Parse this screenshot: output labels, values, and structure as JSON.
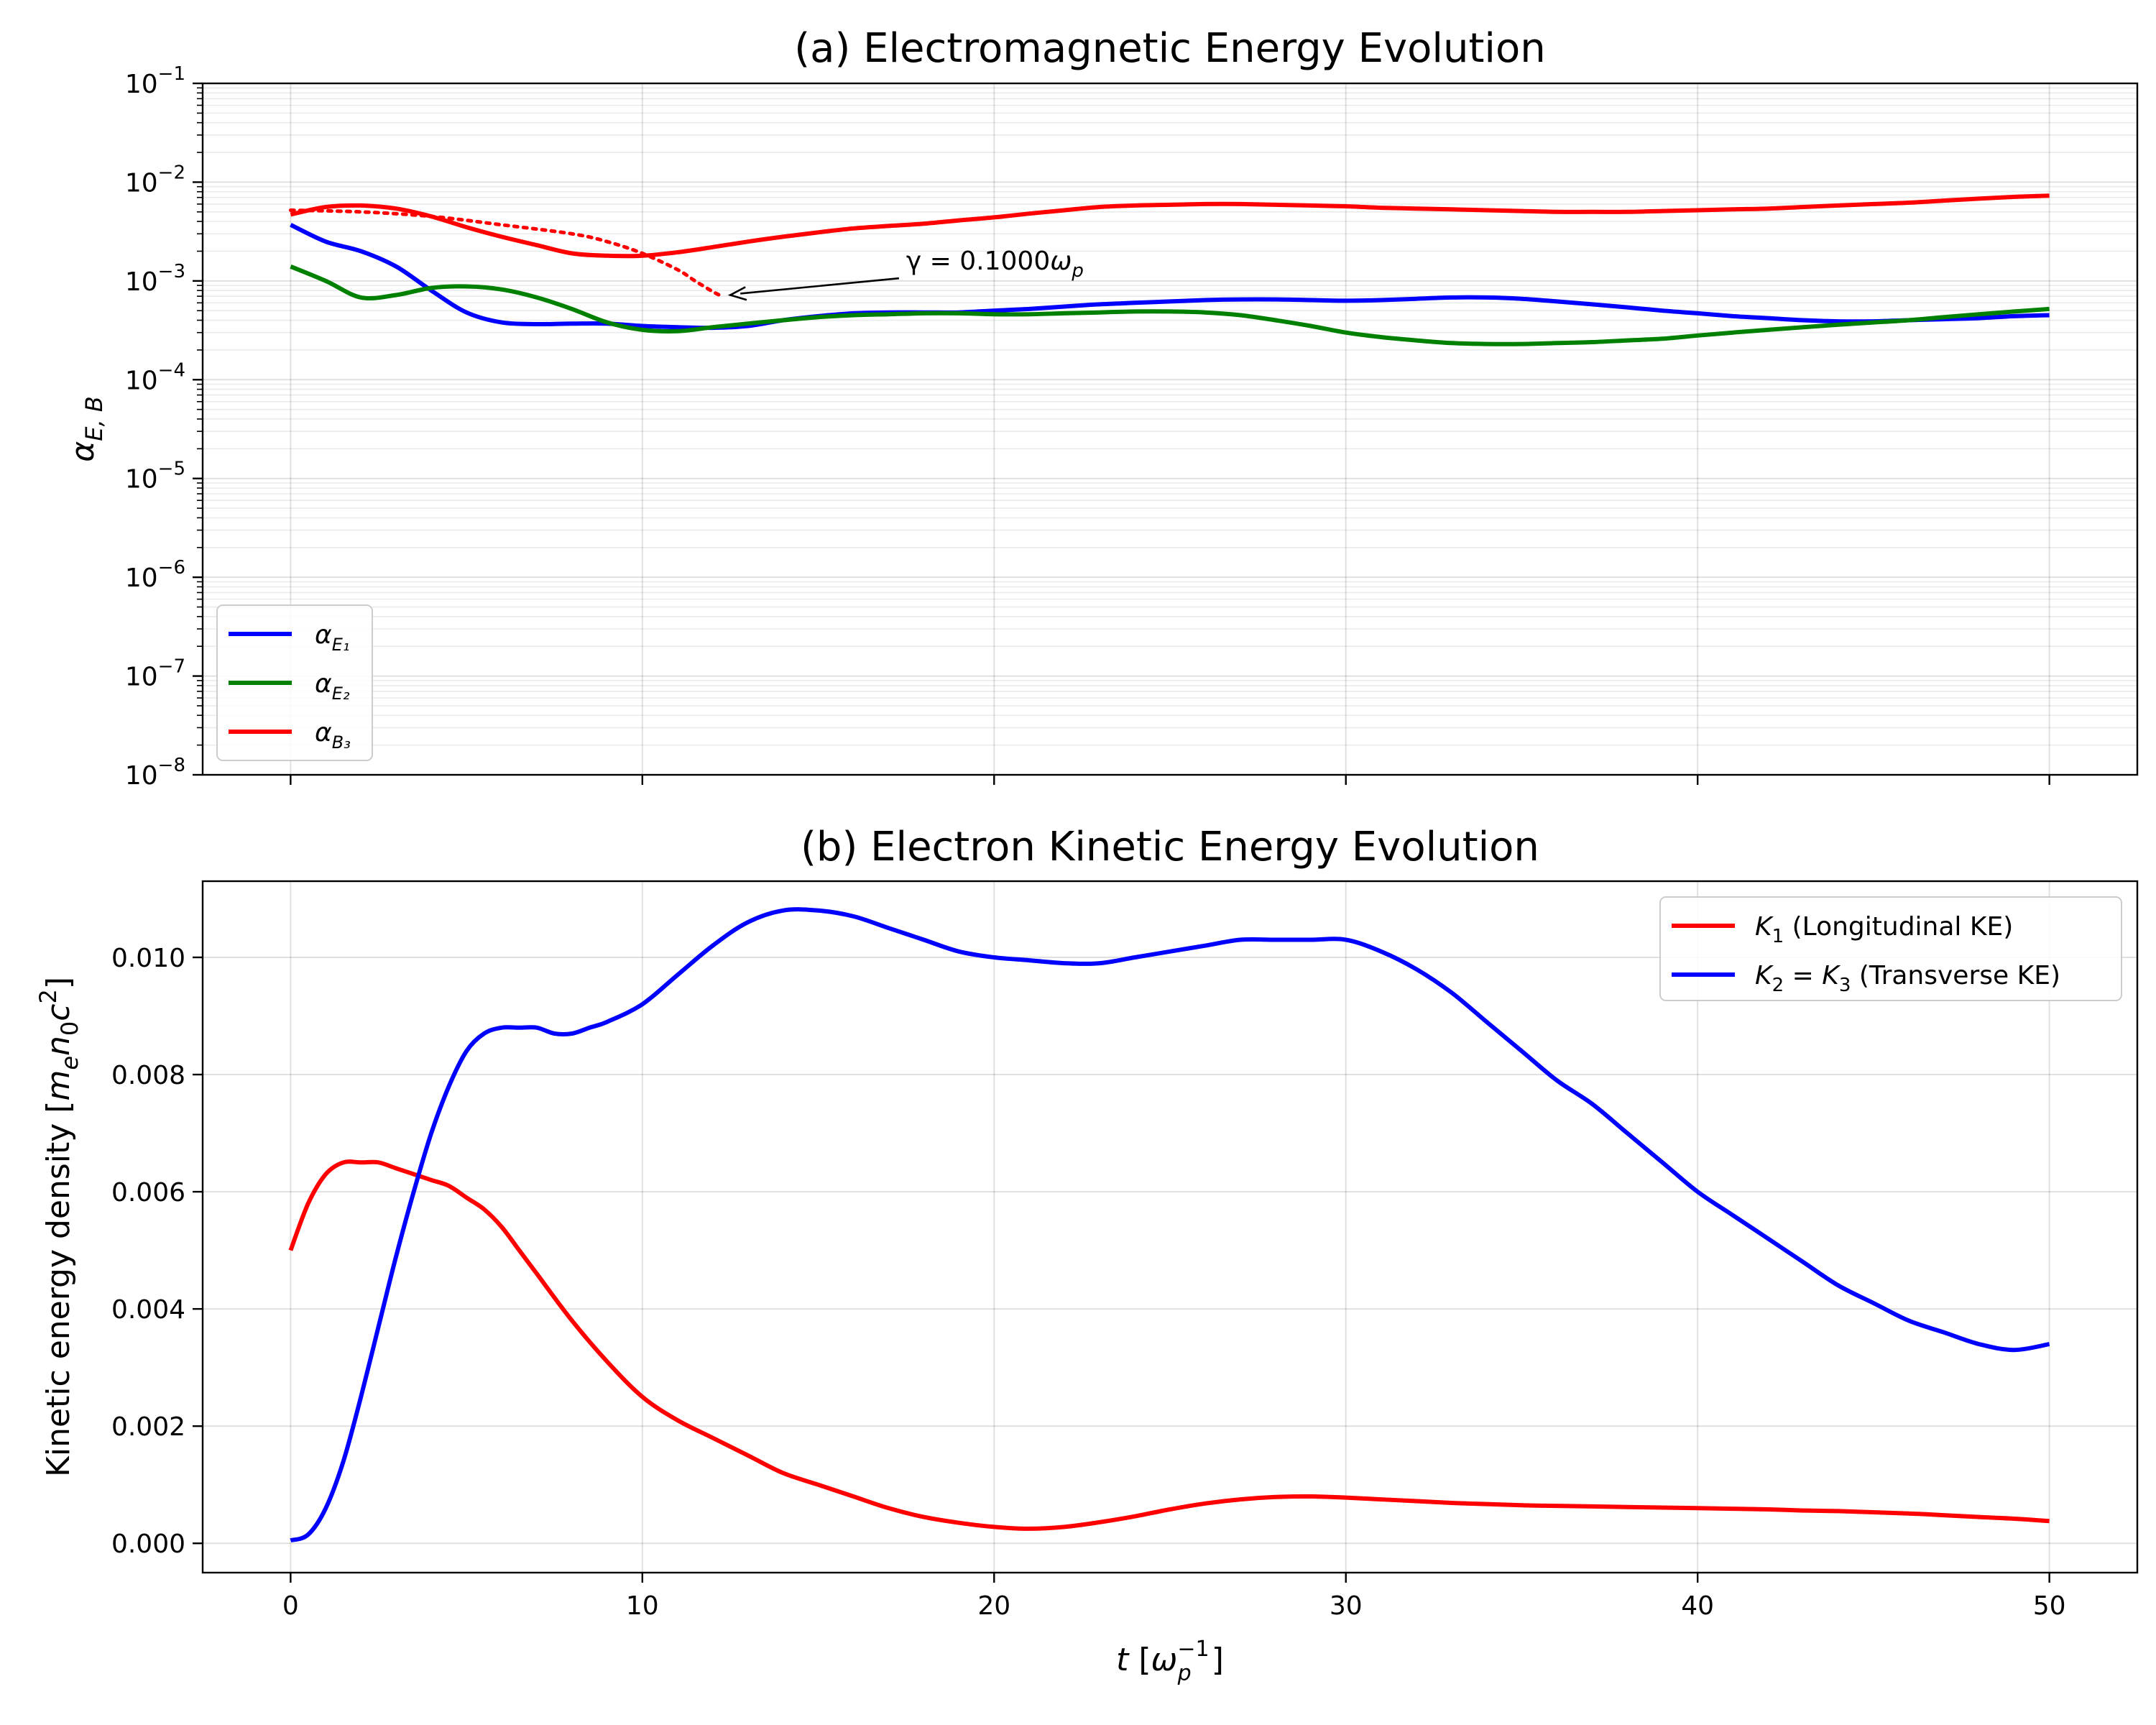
{
  "chart_data": [
    {
      "type": "line",
      "title": "(a) Electromagnetic Energy Evolution",
      "xlabel": "",
      "ylabel": "α",
      "ylabel_sub": "E, B",
      "yscale": "log",
      "ylim": [
        1e-08,
        0.1
      ],
      "xlim": [
        -2.5,
        52.5
      ],
      "xticks": [
        0,
        10,
        20,
        30,
        40,
        50
      ],
      "xtick_labels_visible": false,
      "yticks": [
        {
          "value": 1e-08,
          "base": "10",
          "exp": "−8"
        },
        {
          "value": 1e-07,
          "base": "10",
          "exp": "−7"
        },
        {
          "value": 1e-06,
          "base": "10",
          "exp": "−6"
        },
        {
          "value": 1e-05,
          "base": "10",
          "exp": "−5"
        },
        {
          "value": 0.0001,
          "base": "10",
          "exp": "−4"
        },
        {
          "value": 0.001,
          "base": "10",
          "exp": "−3"
        },
        {
          "value": 0.01,
          "base": "10",
          "exp": "−2"
        },
        {
          "value": 0.1,
          "base": "10",
          "exp": "−1"
        }
      ],
      "grid": true,
      "legend_position": "lower-left",
      "series": [
        {
          "name": "α",
          "sub": "E₁",
          "color": "#0000ff",
          "x": [
            0,
            1,
            2,
            3,
            4,
            5,
            6,
            7,
            8,
            9,
            10,
            11,
            12,
            13,
            14,
            15,
            16,
            17,
            18,
            19,
            20,
            21,
            22,
            23,
            24,
            25,
            26,
            27,
            28,
            29,
            30,
            31,
            32,
            33,
            34,
            35,
            36,
            37,
            38,
            39,
            40,
            41,
            42,
            43,
            44,
            45,
            46,
            47,
            48,
            49,
            50
          ],
          "y": [
            0.0037,
            0.0025,
            0.002,
            0.0014,
            0.0008,
            0.00048,
            0.00038,
            0.000365,
            0.00037,
            0.00037,
            0.00035,
            0.00034,
            0.000335,
            0.00035,
            0.0004,
            0.00044,
            0.00047,
            0.00048,
            0.00048,
            0.00048,
            0.0005,
            0.00052,
            0.00055,
            0.00058,
            0.0006,
            0.00062,
            0.00064,
            0.00065,
            0.00065,
            0.00064,
            0.00063,
            0.00064,
            0.00066,
            0.00068,
            0.00068,
            0.00066,
            0.00062,
            0.00058,
            0.00054,
            0.0005,
            0.00047,
            0.00044,
            0.00042,
            0.0004,
            0.00039,
            0.00039,
            0.0004,
            0.00041,
            0.00042,
            0.00044,
            0.00045
          ]
        },
        {
          "name": "α",
          "sub": "E₂",
          "color": "#008000",
          "x": [
            0,
            1,
            2,
            3,
            4,
            5,
            6,
            7,
            8,
            9,
            10,
            11,
            12,
            13,
            14,
            15,
            16,
            17,
            18,
            19,
            20,
            21,
            22,
            23,
            24,
            25,
            26,
            27,
            28,
            29,
            30,
            31,
            32,
            33,
            34,
            35,
            36,
            37,
            38,
            39,
            40,
            41,
            42,
            43,
            44,
            45,
            46,
            47,
            48,
            49,
            50
          ],
          "y": [
            0.0014,
            0.001,
            0.00068,
            0.00072,
            0.00085,
            0.00088,
            0.00082,
            0.00068,
            0.00052,
            0.00038,
            0.00032,
            0.00031,
            0.00034,
            0.00037,
            0.0004,
            0.00043,
            0.00045,
            0.00046,
            0.00047,
            0.00047,
            0.00046,
            0.00046,
            0.00047,
            0.00048,
            0.00049,
            0.00049,
            0.00048,
            0.00045,
            0.0004,
            0.00035,
            0.0003,
            0.00027,
            0.00025,
            0.000235,
            0.00023,
            0.00023,
            0.000235,
            0.00024,
            0.00025,
            0.00026,
            0.00028,
            0.0003,
            0.00032,
            0.00034,
            0.00036,
            0.00038,
            0.0004,
            0.00043,
            0.00046,
            0.00049,
            0.00052
          ]
        },
        {
          "name": "α",
          "sub": "B₃",
          "color": "#ff0000",
          "x": [
            0,
            1,
            2,
            3,
            4,
            5,
            6,
            7,
            8,
            9,
            10,
            11,
            12,
            13,
            14,
            15,
            16,
            17,
            18,
            19,
            20,
            21,
            22,
            23,
            24,
            25,
            26,
            27,
            28,
            29,
            30,
            31,
            32,
            33,
            34,
            35,
            36,
            37,
            38,
            39,
            40,
            41,
            42,
            43,
            44,
            45,
            46,
            47,
            48,
            49,
            50
          ],
          "y": [
            0.0047,
            0.0056,
            0.0058,
            0.0054,
            0.0045,
            0.0035,
            0.0028,
            0.0023,
            0.0019,
            0.0018,
            0.0018,
            0.00195,
            0.0022,
            0.0025,
            0.0028,
            0.0031,
            0.0034,
            0.0036,
            0.0038,
            0.0041,
            0.0044,
            0.0048,
            0.0052,
            0.0056,
            0.0058,
            0.0059,
            0.006,
            0.006,
            0.0059,
            0.0058,
            0.0057,
            0.0055,
            0.0054,
            0.0053,
            0.0052,
            0.0051,
            0.005,
            0.005,
            0.005,
            0.0051,
            0.0052,
            0.0053,
            0.0054,
            0.0056,
            0.0058,
            0.006,
            0.0062,
            0.0065,
            0.0068,
            0.0071,
            0.0073
          ]
        }
      ],
      "fit_line": {
        "color": "#ff0000",
        "style": "dotted",
        "x": [
          0,
          2,
          4,
          6,
          8,
          9,
          10,
          11,
          11.5,
          12,
          12.3
        ],
        "y": [
          0.0052,
          0.005,
          0.0045,
          0.0037,
          0.003,
          0.0025,
          0.0019,
          0.0013,
          0.001,
          0.00078,
          0.00069
        ]
      },
      "annotation": {
        "text_prefix": "γ = 0.1000",
        "text_symbol": "ω",
        "text_sub": "p",
        "text_data": [
          17.5,
          0.0013
        ],
        "arrow_head": [
          12.5,
          0.00072
        ]
      }
    },
    {
      "type": "line",
      "title": "(b) Electron Kinetic Energy Evolution",
      "xlabel_var": "t",
      "xlabel_unit_sym": "ω",
      "xlabel_unit_sub": "p",
      "xlabel_unit_sup": "−1",
      "ylabel": "Kinetic energy density [m",
      "ylabel_parts": {
        "e": "e",
        "n": "n",
        "zero": "0",
        "c": "c",
        "two": "2"
      },
      "xlim": [
        -2.5,
        52.5
      ],
      "ylim": [
        -0.0005,
        0.0113
      ],
      "xticks": [
        0,
        10,
        20,
        30,
        40,
        50
      ],
      "xtick_labels": [
        "0",
        "10",
        "20",
        "30",
        "40",
        "50"
      ],
      "yticks": [
        0,
        0.002,
        0.004,
        0.006,
        0.008,
        0.01
      ],
      "ytick_labels": [
        "0.000",
        "0.002",
        "0.004",
        "0.006",
        "0.008",
        "0.010"
      ],
      "grid": true,
      "legend_position": "upper-right",
      "series": [
        {
          "name_var": "K",
          "name_sub": "1",
          "name_rest": " (Longitudinal KE)",
          "color": "#ff0000",
          "x": [
            0,
            0.5,
            1,
            1.5,
            2,
            2.5,
            3,
            3.5,
            4,
            4.5,
            5,
            5.5,
            6,
            6.5,
            7,
            8,
            9,
            10,
            11,
            12,
            13,
            14,
            15,
            16,
            17,
            18,
            19,
            20,
            21,
            22,
            23,
            24,
            25,
            26,
            27,
            28,
            29,
            30,
            31,
            32,
            33,
            34,
            35,
            36,
            37,
            38,
            39,
            40,
            41,
            42,
            43,
            44,
            45,
            46,
            47,
            48,
            49,
            50
          ],
          "y": [
            0.005,
            0.0058,
            0.0063,
            0.0065,
            0.0065,
            0.0065,
            0.0064,
            0.0063,
            0.0062,
            0.0061,
            0.0059,
            0.0057,
            0.0054,
            0.005,
            0.0046,
            0.0038,
            0.0031,
            0.0025,
            0.0021,
            0.0018,
            0.0015,
            0.0012,
            0.001,
            0.0008,
            0.0006,
            0.00045,
            0.00035,
            0.00028,
            0.00025,
            0.00028,
            0.00036,
            0.00046,
            0.00058,
            0.00068,
            0.00075,
            0.00079,
            0.0008,
            0.00078,
            0.00075,
            0.00072,
            0.00069,
            0.00067,
            0.00065,
            0.00064,
            0.00063,
            0.00062,
            0.00061,
            0.0006,
            0.00059,
            0.00058,
            0.00056,
            0.00055,
            0.00053,
            0.00051,
            0.00048,
            0.00045,
            0.00042,
            0.00038
          ]
        },
        {
          "name_var": "K",
          "name_sub": "2",
          "name_eq": " = ",
          "name_var2": "K",
          "name_sub2": "3",
          "name_rest": " (Transverse KE)",
          "color": "#0000ff",
          "x": [
            0,
            0.5,
            1,
            1.5,
            2,
            2.5,
            3,
            3.5,
            4,
            4.5,
            5,
            5.5,
            6,
            6.5,
            7,
            7.5,
            8,
            8.5,
            9,
            10,
            11,
            12,
            13,
            14,
            15,
            16,
            17,
            18,
            19,
            20,
            21,
            22,
            23,
            24,
            25,
            26,
            27,
            28,
            29,
            30,
            31,
            32,
            33,
            34,
            35,
            36,
            37,
            38,
            39,
            40,
            41,
            42,
            43,
            44,
            45,
            46,
            47,
            48,
            49,
            50
          ],
          "y": [
            5e-05,
            0.00015,
            0.0006,
            0.0014,
            0.0025,
            0.0037,
            0.0049,
            0.006,
            0.007,
            0.0078,
            0.0084,
            0.0087,
            0.0088,
            0.0088,
            0.0088,
            0.0087,
            0.0087,
            0.0088,
            0.0089,
            0.0092,
            0.0097,
            0.0102,
            0.0106,
            0.0108,
            0.0108,
            0.0107,
            0.0105,
            0.0103,
            0.0101,
            0.01,
            0.00995,
            0.0099,
            0.0099,
            0.01,
            0.0101,
            0.0102,
            0.0103,
            0.0103,
            0.0103,
            0.0103,
            0.0101,
            0.0098,
            0.0094,
            0.0089,
            0.0084,
            0.0079,
            0.0075,
            0.007,
            0.0065,
            0.006,
            0.0056,
            0.0052,
            0.0048,
            0.0044,
            0.0041,
            0.0038,
            0.0036,
            0.0034,
            0.0033,
            0.0034
          ]
        }
      ]
    }
  ]
}
